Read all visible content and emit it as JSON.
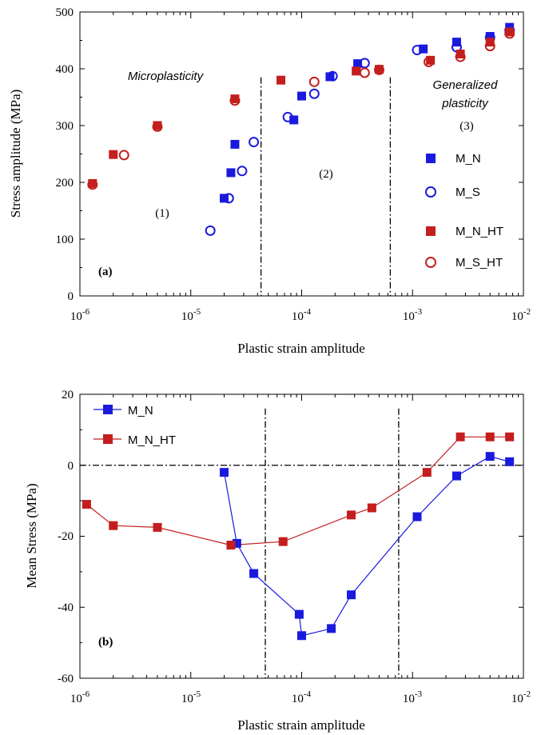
{
  "colors": {
    "blue": "#1a1adf",
    "red": "#c41e1e",
    "axis": "#000000"
  },
  "chart_data": [
    {
      "type": "scatter",
      "panel_label": "(a)",
      "xlabel": "Plastic strain amplitude",
      "ylabel": "Stress amplitude (MPa)",
      "x_scale": "log",
      "xlim": [
        1e-06,
        0.01
      ],
      "ylim": [
        0,
        500
      ],
      "yticks": [
        "0",
        "100",
        "200",
        "300",
        "400",
        "500"
      ],
      "xtick_labels": [
        {
          "base": "10",
          "exp": "-6"
        },
        {
          "base": "10",
          "exp": "-5"
        },
        {
          "base": "10",
          "exp": "-4"
        },
        {
          "base": "10",
          "exp": "-3"
        },
        {
          "base": "10",
          "exp": "-2"
        }
      ],
      "regions": [
        {
          "label": "Microplasticity",
          "style": "italic"
        },
        {
          "label": "(1)"
        },
        {
          "label": "(2)"
        },
        {
          "label": "Generalized",
          "label2": "plasticity",
          "style": "italic"
        },
        {
          "label": "(3)"
        }
      ],
      "vlines": [
        4.3e-05,
        0.00063
      ],
      "legend_position": "right",
      "series": [
        {
          "name": "M_N",
          "marker": "square-filled",
          "color": "blue",
          "points": [
            [
              2e-05,
              172
            ],
            [
              2.3e-05,
              217
            ],
            [
              2.5e-05,
              267
            ],
            [
              8.5e-05,
              310
            ],
            [
              0.0001,
              352
            ],
            [
              0.00018,
              386
            ],
            [
              0.00032,
              409
            ],
            [
              0.00125,
              435
            ],
            [
              0.0025,
              447
            ],
            [
              0.005,
              457
            ],
            [
              0.0075,
              473
            ]
          ]
        },
        {
          "name": "M_S",
          "marker": "circle-open",
          "color": "blue",
          "points": [
            [
              1.5e-05,
              115
            ],
            [
              2.2e-05,
              172
            ],
            [
              2.9e-05,
              220
            ],
            [
              3.7e-05,
              271
            ],
            [
              7.5e-05,
              315
            ],
            [
              0.00013,
              356
            ],
            [
              0.00019,
              387
            ],
            [
              0.00037,
              410
            ],
            [
              0.0011,
              433
            ],
            [
              0.0025,
              438
            ],
            [
              0.005,
              455
            ],
            [
              0.0075,
              468
            ]
          ]
        },
        {
          "name": "M_N_HT",
          "marker": "square-filled",
          "color": "red",
          "points": [
            [
              1.3e-06,
              198
            ],
            [
              2e-06,
              249
            ],
            [
              5e-06,
              300
            ],
            [
              2.5e-05,
              347
            ],
            [
              6.5e-05,
              380
            ],
            [
              0.00031,
              396
            ],
            [
              0.0005,
              399
            ],
            [
              0.00145,
              415
            ],
            [
              0.0027,
              426
            ],
            [
              0.005,
              447
            ],
            [
              0.0075,
              465
            ]
          ]
        },
        {
          "name": "M_S_HT",
          "marker": "circle-open",
          "color": "red",
          "points": [
            [
              1.3e-06,
              196
            ],
            [
              2.5e-06,
              248
            ],
            [
              5e-06,
              298
            ],
            [
              2.5e-05,
              344
            ],
            [
              0.00013,
              377
            ],
            [
              0.00037,
              393
            ],
            [
              0.0005,
              398
            ],
            [
              0.0014,
              412
            ],
            [
              0.0027,
              421
            ],
            [
              0.005,
              440
            ],
            [
              0.0075,
              462
            ]
          ]
        }
      ]
    },
    {
      "type": "line",
      "panel_label": "(b)",
      "xlabel": "Plastic strain amplitude",
      "ylabel": "Mean Stress (MPa)",
      "x_scale": "log",
      "xlim": [
        1e-06,
        0.01
      ],
      "ylim": [
        -60,
        20
      ],
      "yticks": [
        "-60",
        "-40",
        "-20",
        "0",
        "20"
      ],
      "xtick_labels": [
        {
          "base": "10",
          "exp": "-6"
        },
        {
          "base": "10",
          "exp": "-5"
        },
        {
          "base": "10",
          "exp": "-4"
        },
        {
          "base": "10",
          "exp": "-3"
        },
        {
          "base": "10",
          "exp": "-2"
        }
      ],
      "hline": 0,
      "vlines": [
        4.7e-05,
        0.00075
      ],
      "legend_position": "top-left",
      "series": [
        {
          "name": "M_N",
          "marker": "square-filled",
          "color": "blue",
          "points": [
            [
              2e-05,
              -2
            ],
            [
              2.6e-05,
              -22
            ],
            [
              3.7e-05,
              -30.5
            ],
            [
              9.5e-05,
              -42
            ],
            [
              0.0001,
              -48
            ],
            [
              0.000185,
              -46
            ],
            [
              0.00028,
              -36.5
            ],
            [
              0.0011,
              -14.5
            ],
            [
              0.0025,
              -3
            ],
            [
              0.005,
              2.5
            ],
            [
              0.0075,
              1
            ]
          ]
        },
        {
          "name": "M_N_HT",
          "marker": "square-filled",
          "color": "red",
          "points": [
            [
              1.15e-06,
              -11
            ],
            [
              2e-06,
              -17
            ],
            [
              5e-06,
              -17.5
            ],
            [
              2.3e-05,
              -22.5
            ],
            [
              6.8e-05,
              -21.5
            ],
            [
              0.00028,
              -14
            ],
            [
              0.00043,
              -12
            ],
            [
              0.00135,
              -2
            ],
            [
              0.0027,
              8
            ],
            [
              0.005,
              8
            ],
            [
              0.0075,
              8
            ]
          ]
        }
      ]
    }
  ]
}
